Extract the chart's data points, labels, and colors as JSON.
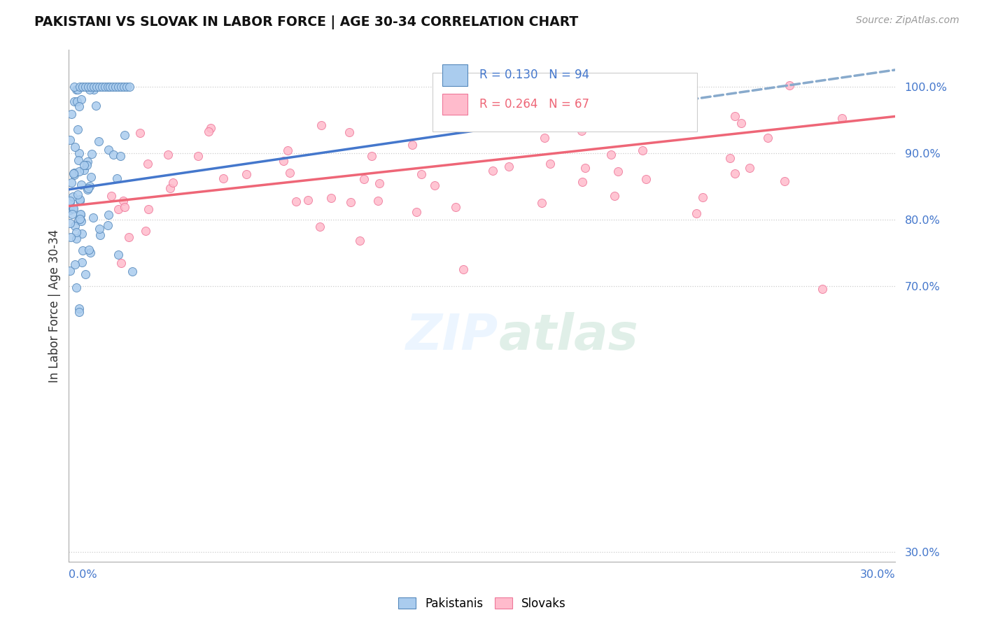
{
  "title": "PAKISTANI VS SLOVAK IN LABOR FORCE | AGE 30-34 CORRELATION CHART",
  "source": "Source: ZipAtlas.com",
  "ylabel": "In Labor Force | Age 30-34",
  "ytick_positions": [
    0.3,
    0.7,
    0.8,
    0.9,
    1.0
  ],
  "xlim": [
    0.0,
    0.3
  ],
  "ylim": [
    0.285,
    1.055
  ],
  "blue_face": "#AACCEE",
  "blue_edge": "#5588BB",
  "pink_face": "#FFBBCC",
  "pink_edge": "#EE7799",
  "trend_blue_solid": "#4477CC",
  "trend_blue_dash": "#88AACC",
  "trend_pink": "#EE6677",
  "watermark_color": "#DDEEFF",
  "grid_color": "#CCCCCC",
  "tick_color": "#4477CC",
  "title_color": "#111111",
  "source_color": "#999999",
  "ylabel_color": "#333333"
}
